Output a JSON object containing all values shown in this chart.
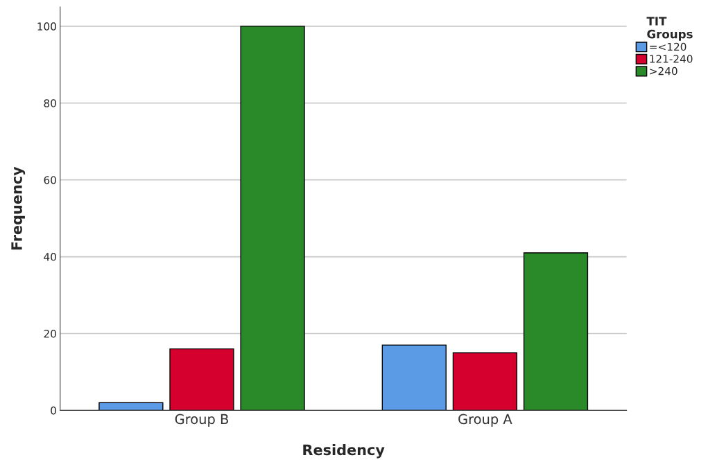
{
  "chart_data": {
    "type": "bar",
    "xlabel": "Residency",
    "ylabel": "Frequency",
    "legend_title": "TIT\nGroups",
    "categories": [
      "Group B",
      "Group A"
    ],
    "series": [
      {
        "name": "=<120",
        "color": "#5b9be6",
        "values": [
          2,
          17
        ]
      },
      {
        "name": "121-240",
        "color": "#d6002f",
        "values": [
          16,
          15
        ]
      },
      {
        "name": ">240",
        "color": "#2a8a2a",
        "values": [
          100,
          41
        ]
      }
    ],
    "ylim": [
      0,
      105
    ],
    "yticks": [
      0,
      20,
      40,
      60,
      80,
      100
    ],
    "grid": "y",
    "legend": "top right"
  }
}
